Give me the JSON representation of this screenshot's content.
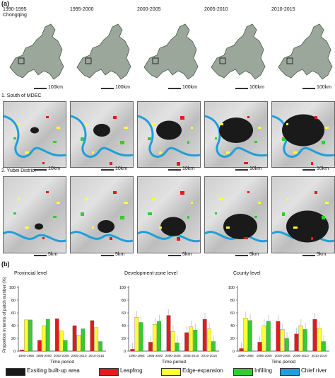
{
  "panel_a": {
    "tag": "(a)",
    "periods": [
      "1990-1995",
      "1995-2000",
      "2000-2005",
      "2005-2010",
      "2010-2015"
    ],
    "row1_label": "Chongqing",
    "row2_label": "1. South of MDEC",
    "row3_label": "2. Yubei District",
    "scale_row1": "100km",
    "scale_row2": "10km",
    "scale_row3": "5km"
  },
  "panel_b": {
    "tag": "(b)",
    "ylabel": "Proportion in terms of patch number (%)",
    "xlabel": "Time period"
  },
  "legend": {
    "items": [
      {
        "label": "Exsiting built-up area",
        "color": "#1a1a1a"
      },
      {
        "label": "Leapfrog",
        "color": "#e31a1c"
      },
      {
        "label": "Edge-expansion",
        "color": "#ffff33"
      },
      {
        "label": "Infilling",
        "color": "#33cc33"
      },
      {
        "label": "Chief river",
        "color": "#1f9fd9"
      }
    ]
  },
  "colors": {
    "leapfrog": "#e31a1c",
    "edge": "#ffff33",
    "infilling": "#33cc33",
    "built": "#1a1a1a",
    "river": "#1f9fd9"
  },
  "chart_data": [
    {
      "type": "bar",
      "title": "Provincial level",
      "categories": [
        "1990-1995",
        "1995-2000",
        "2000-2005",
        "2005-2010",
        "2010-2015"
      ],
      "ylim": [
        0,
        100
      ],
      "yticks": [
        0,
        20,
        40,
        60,
        80,
        100
      ],
      "series": [
        {
          "name": "Leapfrog",
          "values": [
            2,
            17,
            51,
            40,
            48
          ]
        },
        {
          "name": "Edge-expansion",
          "values": [
            49,
            40,
            32,
            25,
            37
          ]
        },
        {
          "name": "Infilling",
          "values": [
            49,
            50,
            17,
            35,
            15
          ]
        }
      ]
    },
    {
      "type": "bar",
      "title": "Development-zone level",
      "categories": [
        "1990-1995",
        "1995-2000",
        "2000-2005",
        "2005-2010",
        "2010-2015"
      ],
      "ylim": [
        0,
        100
      ],
      "yticks": [
        0,
        20,
        40,
        60,
        80,
        100
      ],
      "series": [
        {
          "name": "Leapfrog",
          "values": [
            3,
            14,
            56,
            29,
            50
          ]
        },
        {
          "name": "Edge-expansion",
          "values": [
            53,
            42,
            31,
            38,
            35
          ]
        },
        {
          "name": "Infilling",
          "values": [
            45,
            47,
            13,
            33,
            15
          ]
        }
      ]
    },
    {
      "type": "bar",
      "title": "County level",
      "categories": [
        "1990-1995",
        "1995-2000",
        "2000-2005",
        "2005-2010",
        "2010-2015"
      ],
      "ylim": [
        0,
        100
      ],
      "yticks": [
        0,
        20,
        40,
        60,
        80,
        100
      ],
      "series": [
        {
          "name": "Leapfrog",
          "values": [
            4,
            14,
            47,
            27,
            50
          ]
        },
        {
          "name": "Edge-expansion",
          "values": [
            52,
            40,
            34,
            40,
            36
          ]
        },
        {
          "name": "Infilling",
          "values": [
            48,
            47,
            20,
            34,
            15
          ]
        }
      ]
    }
  ]
}
